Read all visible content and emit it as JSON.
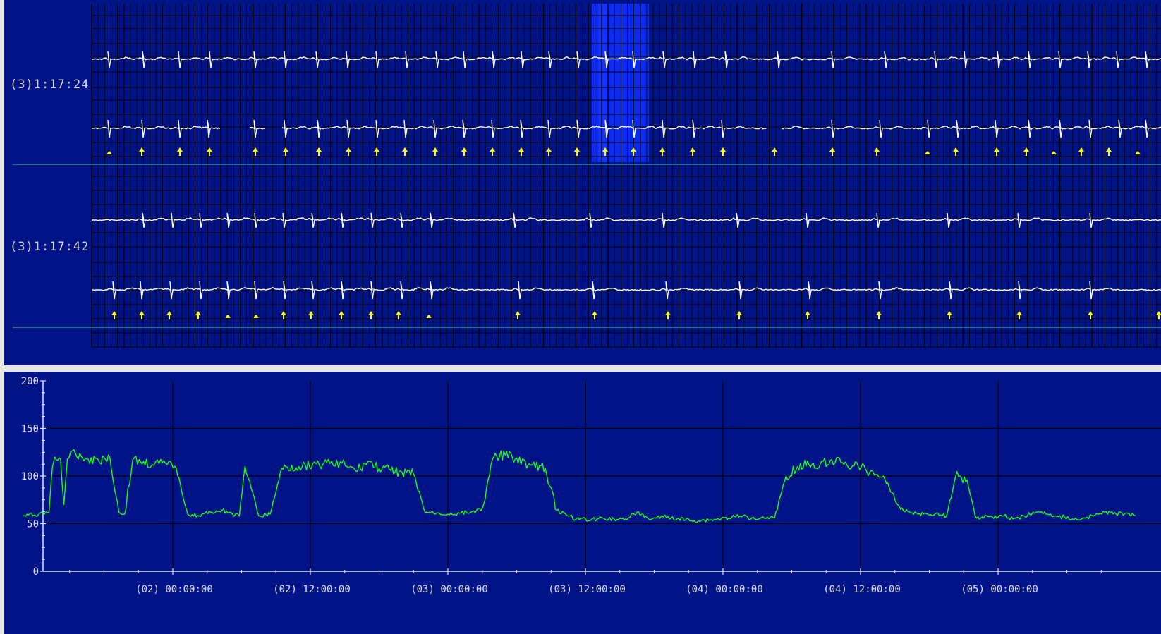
{
  "ecg": {
    "colors": {
      "background": "#001487",
      "grid": "#000000",
      "trace": "#ffffff",
      "marker": "#ffff00",
      "selection": "#0a2cf5",
      "separator": "#2a8a9a"
    },
    "strips": [
      {
        "label": "(3)1:17:24",
        "beats_channel1": [
          155,
          204,
          255,
          299,
          362,
          405,
          450,
          493,
          535,
          577,
          620,
          659,
          700,
          741,
          780,
          820,
          860,
          899,
          942,
          985,
          1030,
          1104,
          1181,
          1256,
          1327,
          1369,
          1416,
          1460,
          1503,
          1544,
          1585,
          1626
        ],
        "beats_channel2": [
          155,
          203,
          255,
          296,
          362,
          405,
          452,
          494,
          535,
          575,
          617,
          658,
          699,
          740,
          779,
          820,
          860,
          899,
          941,
          984,
          1025,
          1105,
          1181,
          1249,
          1317,
          1358,
          1413,
          1460,
          1504,
          1546,
          1588,
          1626
        ],
        "markers": [
          155,
          201,
          255,
          297,
          362,
          405,
          452,
          494,
          534,
          574,
          617,
          658,
          698,
          739,
          778,
          818,
          858,
          898,
          939,
          982,
          1025,
          1098,
          1180,
          1243,
          1315,
          1355,
          1413,
          1455,
          1494,
          1533,
          1572,
          1613
        ],
        "dot_markers": [
          155,
          1315,
          1494,
          1613
        ],
        "gaps": [
          [
            313,
            352
          ],
          [
            378,
            398
          ],
          [
            1087,
            1106
          ]
        ]
      },
      {
        "label": "(3)1:17:42",
        "beats_channel1": [
          204,
          245,
          285,
          324,
          363,
          403,
          444,
          486,
          528,
          570,
          612,
          730,
          838,
          941,
          1046,
          1145,
          1245,
          1345,
          1445,
          1547
        ],
        "beats_channel2": [
          162,
          201,
          243,
          285,
          324,
          363,
          404,
          444,
          486,
          528,
          570,
          612,
          737,
          842,
          946,
          1050,
          1148,
          1248,
          1348,
          1446,
          1547
        ],
        "markers": [
          162,
          201,
          240,
          281,
          323,
          363,
          402,
          441,
          484,
          526,
          565,
          608,
          734,
          843,
          947,
          1048,
          1145,
          1246,
          1346,
          1445,
          1546,
          1643
        ],
        "dot_markers": [
          323,
          363,
          608
        ],
        "gaps": []
      }
    ]
  },
  "trend": {
    "colors": {
      "background": "#001487",
      "axis": "#e0e0ff",
      "grid": "#000000",
      "line": "#14ff14"
    },
    "y_ticks": [
      "200",
      "150",
      "100",
      "50",
      "0"
    ],
    "x_ticks": [
      "(02) 00:00:00",
      "(02) 12:00:00",
      "(03) 00:00:00",
      "(03) 12:00:00",
      "(04) 00:00:00",
      "(04) 12:00:00",
      "(05) 00:00:00"
    ]
  },
  "chart_data": {
    "type": "line",
    "title": "",
    "xlabel": "",
    "ylabel": "",
    "ylim": [
      0,
      200
    ],
    "x_unit": "hours from (02) 00:00:00",
    "series": [
      {
        "x": [
          -13.1,
          -11.7,
          -10.8,
          -10.5,
          -10.3,
          -9.8,
          -9.5,
          -9.2,
          -8.5,
          -7.5,
          -6.5,
          -5.5,
          -4.7,
          -4.5,
          -4.2,
          -3.5,
          -2.8,
          -1.8,
          -1.5,
          -1.2,
          -0.5,
          0.3,
          1.3,
          2.3,
          3.3,
          4.3,
          5.2,
          5.8,
          6.3,
          7.5,
          8.5,
          9.5,
          11.0,
          12.2,
          12.8,
          13.3,
          13.7,
          14.0,
          14.6,
          15.2,
          16.0,
          17.0,
          18.0,
          19.0,
          20.0,
          21.0,
          22.0,
          23.0,
          24.0,
          25.0,
          26.0,
          27.0,
          28.0,
          29.0,
          30.0,
          31.0,
          32.5,
          33.5,
          34.5,
          35.2,
          36.0,
          36.5,
          37.5,
          38.5,
          39.5,
          40.5,
          41.5,
          42.2,
          42.8,
          44.0,
          45.5,
          47.0,
          48.5,
          49.5,
          50.5,
          51.5,
          52.5,
          53.5,
          54.5,
          55.5,
          56.5,
          57.5,
          58.3,
          58.8,
          59.8,
          60.8,
          62.0,
          63.5,
          65.0,
          66.5,
          67.5,
          68.3,
          69.3,
          70.0,
          70.5,
          71.0,
          71.5,
          72.5,
          73.3,
          74.3,
          75.3,
          76.3,
          77.0,
          77.8,
          78.5,
          79.0,
          79.5,
          80.3,
          80.8,
          81.3,
          82.3,
          83.3,
          84.0
        ],
        "y": [
          58,
          60,
          62,
          110,
          120,
          118,
          70,
          118,
          124,
          118,
          117,
          120,
          62,
          60,
          60,
          117,
          115,
          112,
          115,
          113,
          112,
          108,
          60,
          58,
          62,
          64,
          60,
          58,
          110,
          58,
          60,
          108,
          110,
          113,
          111,
          117,
          113,
          111,
          115,
          110,
          105,
          115,
          108,
          106,
          104,
          102,
          62,
          61,
          60,
          61,
          62,
          66,
          120,
          122,
          119,
          112,
          108,
          64,
          58,
          55,
          55,
          54,
          56,
          55,
          55,
          62,
          55,
          56,
          57,
          55,
          53,
          54,
          56,
          58,
          56,
          57,
          56,
          100,
          110,
          112,
          113,
          117,
          114,
          112,
          110,
          104,
          100,
          65,
          60,
          60,
          58,
          100,
          96,
          58,
          56,
          58,
          57,
          58,
          55,
          58,
          62,
          60,
          58,
          57,
          55,
          54,
          56,
          58,
          60,
          62,
          60,
          61,
          58
        ]
      }
    ]
  }
}
